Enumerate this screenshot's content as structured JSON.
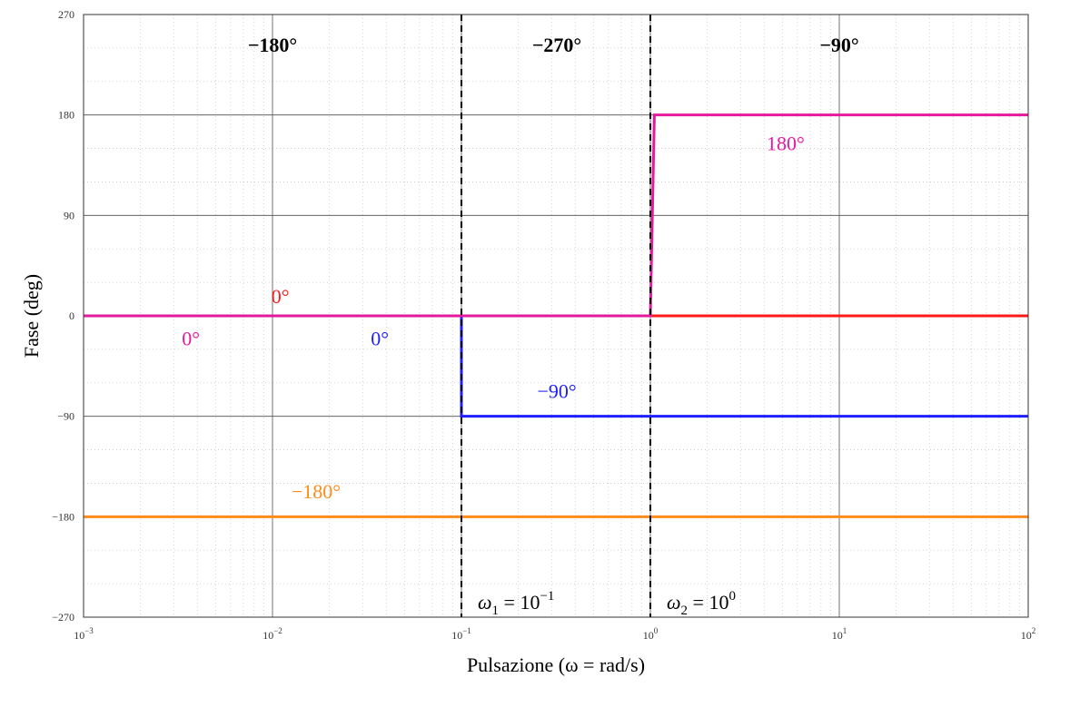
{
  "chart_data": {
    "type": "line",
    "xlabel": "Pulsazione (ω = rad/s)",
    "ylabel": "Fase (deg)",
    "xscale": "log",
    "xlim": [
      0.001,
      100
    ],
    "ylim": [
      -270,
      270
    ],
    "grid": true,
    "x_ticks": [
      {
        "value": 0.001,
        "base": "10",
        "exp": "−3"
      },
      {
        "value": 0.01,
        "base": "10",
        "exp": "−2"
      },
      {
        "value": 0.1,
        "base": "10",
        "exp": "−1"
      },
      {
        "value": 1,
        "base": "10",
        "exp": "0"
      },
      {
        "value": 10,
        "base": "10",
        "exp": "1"
      },
      {
        "value": 100,
        "base": "10",
        "exp": "2"
      }
    ],
    "y_ticks": [
      {
        "value": 270,
        "label": "270"
      },
      {
        "value": 180,
        "label": "180"
      },
      {
        "value": 90,
        "label": "90"
      },
      {
        "value": 0,
        "label": "0"
      },
      {
        "value": -90,
        "label": "−90"
      },
      {
        "value": -180,
        "label": "−180"
      },
      {
        "value": -270,
        "label": "−270"
      }
    ],
    "series": [
      {
        "color": "#ff1a1a",
        "x": [
          0.001,
          100
        ],
        "y": [
          0,
          0
        ]
      },
      {
        "color": "#ff8c1a",
        "x": [
          0.001,
          100
        ],
        "y": [
          -180,
          -180
        ]
      },
      {
        "color": "#1f1fff",
        "x": [
          0.001,
          0.1,
          0.1,
          100
        ],
        "y": [
          0,
          0,
          -90,
          -90
        ]
      },
      {
        "color": "#e6199e",
        "x": [
          0.001,
          1,
          1.05,
          100
        ],
        "y": [
          0,
          0,
          180,
          180
        ]
      }
    ],
    "vlines": [
      {
        "x": 0.1,
        "label": {
          "sym": "ω",
          "sub": "1",
          "eq": " = 10",
          "exp": "−1"
        }
      },
      {
        "x": 1,
        "label": {
          "sym": "ω",
          "sub": "2",
          "eq": " = 10",
          "exp": "0"
        }
      }
    ],
    "annotations": [
      {
        "text": "−180°",
        "x": 0.01,
        "y": 243,
        "color": "#000000",
        "kind": "region"
      },
      {
        "text": "−270°",
        "x": 0.32,
        "y": 243,
        "color": "#000000",
        "kind": "region"
      },
      {
        "text": "−90°",
        "x": 10,
        "y": 243,
        "color": "#000000",
        "kind": "region"
      },
      {
        "text": "180°",
        "x": 5.2,
        "y": 155,
        "color": "#e6199e",
        "kind": "series"
      },
      {
        "text": "0°",
        "x": 0.011,
        "y": 18,
        "color": "#ff1a1a",
        "kind": "series"
      },
      {
        "text": "0°",
        "x": 0.0037,
        "y": -20,
        "color": "#e6199e",
        "kind": "series"
      },
      {
        "text": "0°",
        "x": 0.037,
        "y": -20,
        "color": "#1f1fff",
        "kind": "series"
      },
      {
        "text": "−90°",
        "x": 0.32,
        "y": -67,
        "color": "#1f1fff",
        "kind": "series"
      },
      {
        "text": "−180°",
        "x": 0.017,
        "y": -157,
        "color": "#ff8c1a",
        "kind": "series"
      }
    ]
  }
}
